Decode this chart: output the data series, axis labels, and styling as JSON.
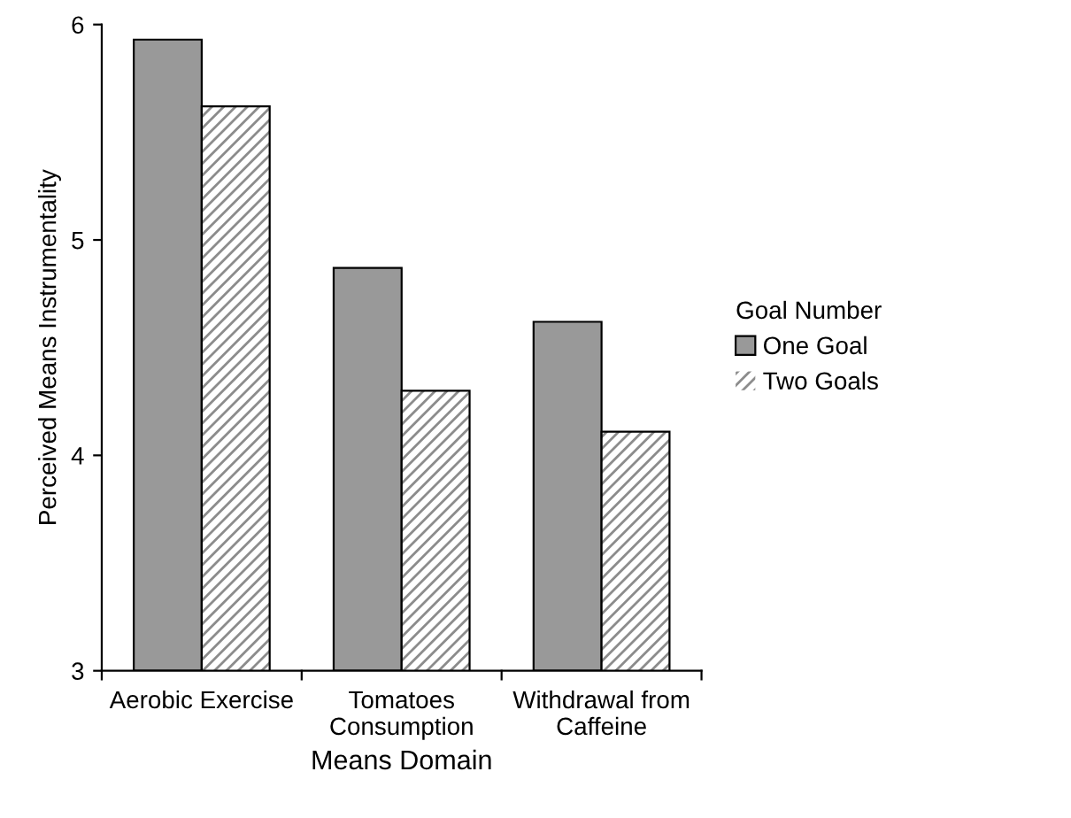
{
  "chart_data": {
    "type": "bar",
    "xlabel": "Means Domain",
    "ylabel": "Perceived Means Instrumentality",
    "legend_title": "Goal Number",
    "categories": [
      "Aerobic Exercise",
      "Tomatoes\nConsumption",
      "Withdrawal from\nCaffeine"
    ],
    "series": [
      {
        "name": "One Goal",
        "color": "#999999",
        "values": [
          5.93,
          4.87,
          4.62
        ]
      },
      {
        "name": "Two Goals",
        "color": "#8c8c8c",
        "values": [
          5.62,
          4.3,
          4.11
        ]
      }
    ],
    "ylim": [
      3,
      6
    ],
    "yticks": [
      3,
      4,
      5,
      6
    ],
    "grid": false,
    "legend": "right"
  }
}
